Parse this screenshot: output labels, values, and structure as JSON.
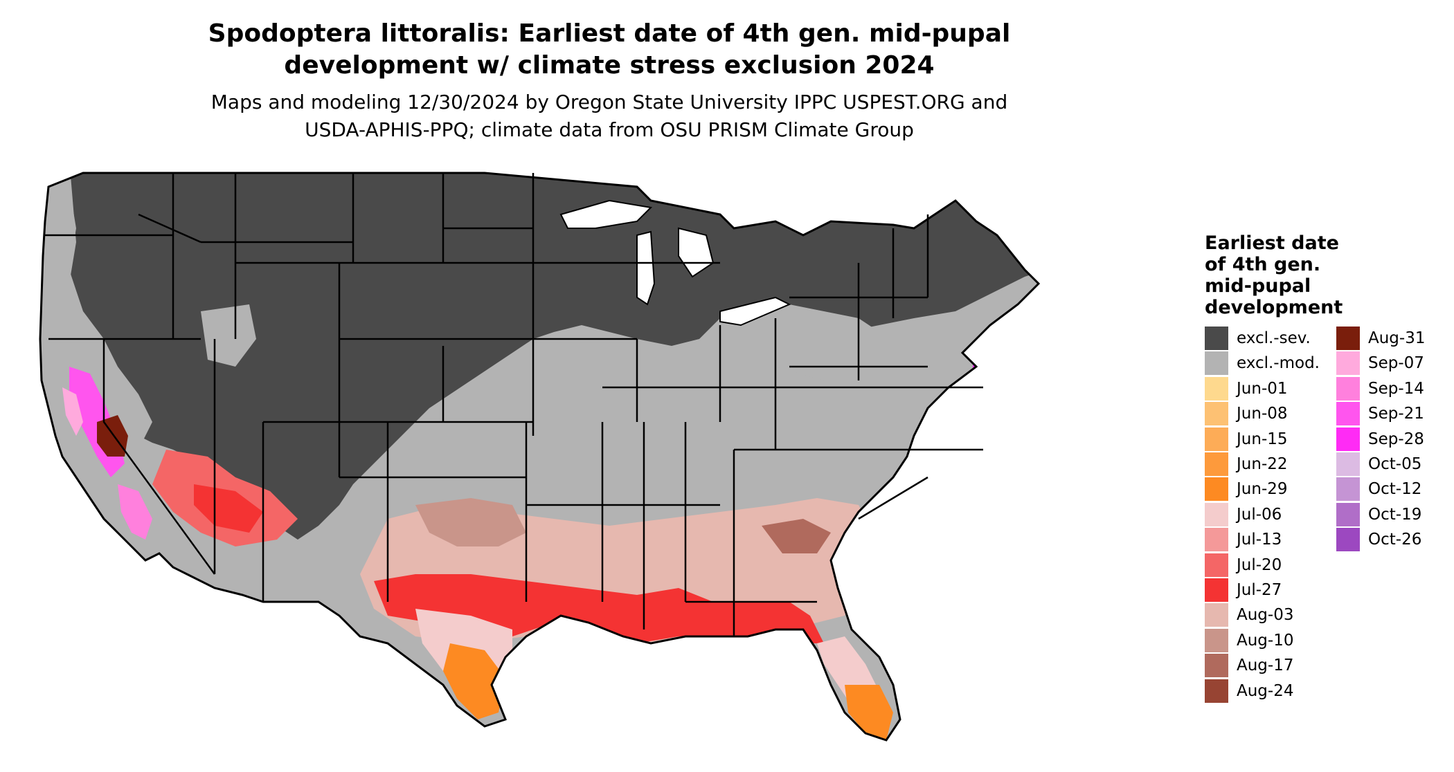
{
  "title_line1": "Spodoptera littoralis: Earliest date of 4th gen. mid-pupal",
  "title_line2": "development w/ climate stress exclusion 2024",
  "subtitle_line1": "Maps and modeling 12/30/2024 by Oregon State University IPPC USPEST.ORG and",
  "subtitle_line2": "USDA-APHIS-PPQ; climate data from OSU PRISM Climate Group",
  "legend": {
    "title_lines": [
      "Earliest date",
      "of 4th gen.",
      "mid-pupal",
      "development"
    ],
    "column1": [
      {
        "label": "excl.-sev.",
        "color": "#4a4a4a"
      },
      {
        "label": "excl.-mod.",
        "color": "#b3b3b3"
      },
      {
        "label": "Jun-01",
        "color": "#fed98e"
      },
      {
        "label": "Jun-08",
        "color": "#fdc173"
      },
      {
        "label": "Jun-15",
        "color": "#fdac57"
      },
      {
        "label": "Jun-22",
        "color": "#fd9a3c"
      },
      {
        "label": "Jun-29",
        "color": "#fd8a22"
      },
      {
        "label": "Jul-06",
        "color": "#f4cccc"
      },
      {
        "label": "Jul-13",
        "color": "#f49999"
      },
      {
        "label": "Jul-20",
        "color": "#f46666"
      },
      {
        "label": "Jul-27",
        "color": "#f43333"
      },
      {
        "label": "Aug-03",
        "color": "#e6b8af"
      },
      {
        "label": "Aug-10",
        "color": "#c9958a"
      },
      {
        "label": "Aug-17",
        "color": "#b06a5d"
      },
      {
        "label": "Aug-24",
        "color": "#974433"
      }
    ],
    "column2": [
      {
        "label": "Aug-31",
        "color": "#7a1e0c"
      },
      {
        "label": "Sep-07",
        "color": "#ffaadd"
      },
      {
        "label": "Sep-14",
        "color": "#ff80dd"
      },
      {
        "label": "Sep-21",
        "color": "#ff55ee"
      },
      {
        "label": "Sep-28",
        "color": "#ff2bf5"
      },
      {
        "label": "Oct-05",
        "color": "#dcbbe3"
      },
      {
        "label": "Oct-12",
        "color": "#c594d4"
      },
      {
        "label": "Oct-19",
        "color": "#b06ec8"
      },
      {
        "label": "Oct-26",
        "color": "#9c48c0"
      }
    ]
  },
  "map": {
    "region": "Contiguous United States",
    "state_border_color": "#000000"
  }
}
